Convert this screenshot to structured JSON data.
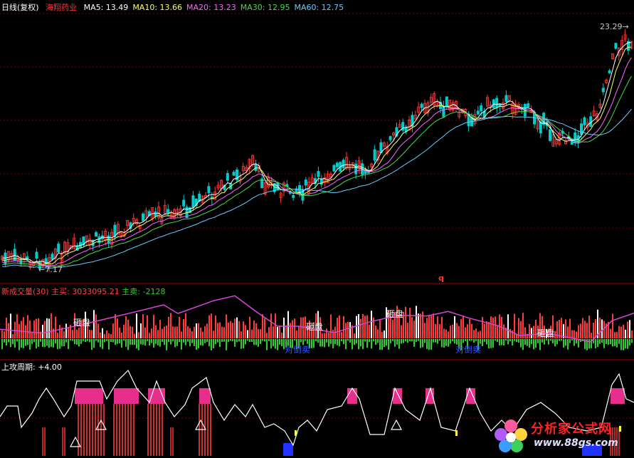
{
  "header": {
    "period": "日线(复权)",
    "stock_name": "海翔药业",
    "ma": [
      {
        "label": "MA5:",
        "value": "13.49",
        "color": "#ffffff"
      },
      {
        "label": "MA10:",
        "value": "13.66",
        "color": "#ffff66"
      },
      {
        "label": "MA20:",
        "value": "13.23",
        "color": "#ff66ff"
      },
      {
        "label": "MA30:",
        "value": "12.95",
        "color": "#44dd44"
      },
      {
        "label": "MA60:",
        "value": "12.75",
        "color": "#66ccff"
      }
    ]
  },
  "price_panel": {
    "high_marker": "23.29",
    "low_marker": "7.17",
    "mid_marker": "q"
  },
  "volume_panel": {
    "name": "新成交量(30)",
    "buy_label": "主买:",
    "buy_value": "3033095.21",
    "sell_label": "主卖:",
    "sell_value": "-2128",
    "annotations": [
      "砸盘",
      "砸盘",
      "砸盘",
      "砸盘",
      "对倒卖",
      "对倒卖"
    ]
  },
  "cycle_panel": {
    "name": "上攻周期:",
    "value": "+4.00"
  },
  "watermark": {
    "brand": "分析家公式网",
    "url": "www.88gs.com"
  },
  "colors": {
    "up": "#ff3b3b",
    "down": "#00cccc",
    "grid": "#7a0000",
    "buy": "#ff3b3b",
    "sell": "#33cc33",
    "accent_magenta": "#dd44dd"
  }
}
